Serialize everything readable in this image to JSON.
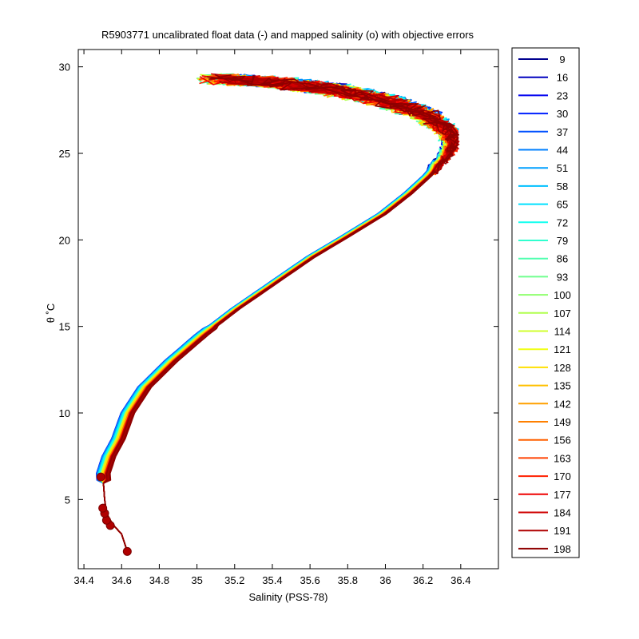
{
  "chart_data": {
    "type": "line",
    "title": "R5903771 uncalibrated float data (-) and mapped salinity (o) with objective errors",
    "xlabel": "Salinity (PSS-78)",
    "ylabel": "θ ˚C",
    "xlim": [
      34.37,
      36.6
    ],
    "ylim": [
      1,
      31
    ],
    "xticks": [
      "34.4",
      "34.6",
      "34.8",
      "35",
      "35.2",
      "35.4",
      "35.6",
      "35.8",
      "36",
      "36.2",
      "36.4"
    ],
    "yticks": [
      "5",
      "10",
      "15",
      "20",
      "25",
      "30"
    ],
    "grid": false,
    "legend_position": "outside-right",
    "colormap": "jet",
    "series": [
      {
        "name": "9",
        "color": "#00008f"
      },
      {
        "name": "16",
        "color": "#0000bf"
      },
      {
        "name": "23",
        "color": "#0000ef"
      },
      {
        "name": "30",
        "color": "#0020ff"
      },
      {
        "name": "37",
        "color": "#0050ff"
      },
      {
        "name": "44",
        "color": "#0080ff"
      },
      {
        "name": "51",
        "color": "#00a0ff"
      },
      {
        "name": "58",
        "color": "#00c0ff"
      },
      {
        "name": "65",
        "color": "#00e0ff"
      },
      {
        "name": "72",
        "color": "#10ffef"
      },
      {
        "name": "79",
        "color": "#30ffcf"
      },
      {
        "name": "86",
        "color": "#50ffaf"
      },
      {
        "name": "93",
        "color": "#70ff8f"
      },
      {
        "name": "100",
        "color": "#90ff6f"
      },
      {
        "name": "107",
        "color": "#b0ff4f"
      },
      {
        "name": "114",
        "color": "#d0ff2f"
      },
      {
        "name": "121",
        "color": "#f0ff10"
      },
      {
        "name": "128",
        "color": "#ffe000"
      },
      {
        "name": "135",
        "color": "#ffc000"
      },
      {
        "name": "142",
        "color": "#ffa000"
      },
      {
        "name": "149",
        "color": "#ff8000"
      },
      {
        "name": "156",
        "color": "#ff6000"
      },
      {
        "name": "163",
        "color": "#ff4000"
      },
      {
        "name": "170",
        "color": "#ff2000"
      },
      {
        "name": "177",
        "color": "#ef0000"
      },
      {
        "name": "184",
        "color": "#cf0000"
      },
      {
        "name": "191",
        "color": "#af0000"
      },
      {
        "name": "198",
        "color": "#8f0000"
      }
    ],
    "mean_profile": {
      "salinity": [
        34.63,
        34.6,
        34.55,
        34.52,
        34.51,
        34.5,
        34.53,
        34.58,
        34.63,
        34.72,
        34.86,
        35.02,
        35.2,
        35.4,
        35.6,
        35.8,
        35.98,
        36.12,
        36.22,
        36.3,
        36.34,
        36.32,
        36.2,
        36.0,
        35.7,
        35.4,
        35.1
      ],
      "theta": [
        2.0,
        3.0,
        3.6,
        4.2,
        5.0,
        6.5,
        7.5,
        8.5,
        10.0,
        11.5,
        13.0,
        14.5,
        16.0,
        17.5,
        19.0,
        20.3,
        21.5,
        22.7,
        23.7,
        24.7,
        25.5,
        26.3,
        27.2,
        28.0,
        28.7,
        29.1,
        29.3
      ]
    },
    "mapped_points": {
      "salinity": [
        34.63,
        34.54,
        34.52,
        34.51,
        34.5,
        34.49
      ],
      "theta": [
        2.0,
        3.5,
        3.8,
        4.2,
        4.5,
        6.3
      ]
    }
  }
}
